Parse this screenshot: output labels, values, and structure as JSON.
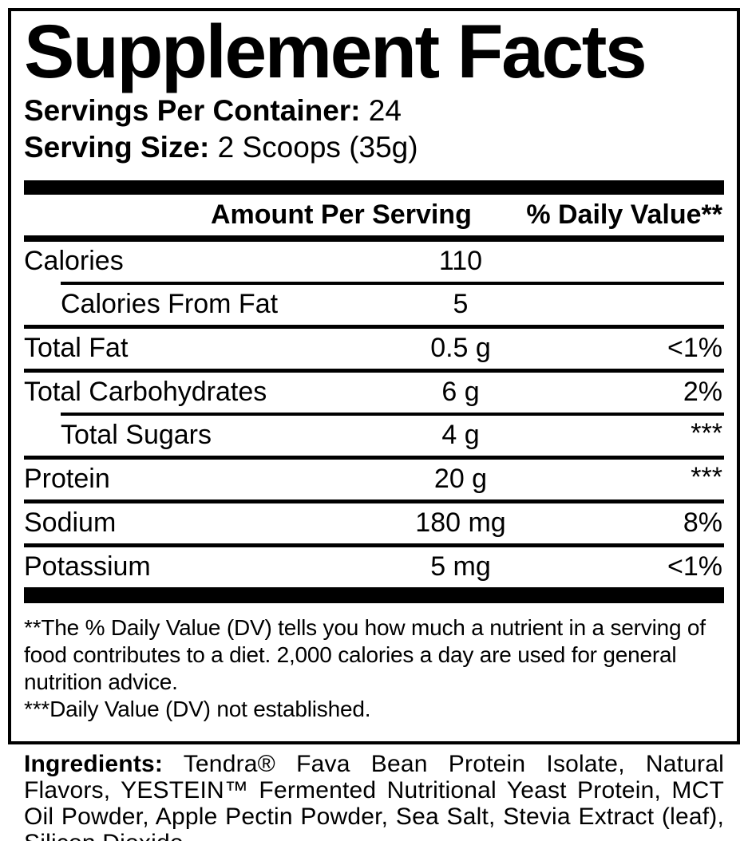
{
  "label": {
    "title": "Supplement Facts",
    "servings_per_container": {
      "label": "Servings Per Container:",
      "value": "24"
    },
    "serving_size": {
      "label": "Serving Size:",
      "value": "2 Scoops (35g)"
    },
    "columns": {
      "amount": "Amount Per Serving",
      "dv": "% Daily Value**"
    },
    "rows": [
      {
        "name": "Calories",
        "amount": "110",
        "dv": ""
      },
      {
        "name": "Calories From Fat",
        "amount": "5",
        "dv": ""
      },
      {
        "name": "Total Fat",
        "amount": "0.5 g",
        "dv": "<1%"
      },
      {
        "name": "Total Carbohydrates",
        "amount": "6 g",
        "dv": "2%"
      },
      {
        "name": "Total Sugars",
        "amount": "4 g",
        "dv": "***"
      },
      {
        "name": "Protein",
        "amount": "20 g",
        "dv": "***"
      },
      {
        "name": "Sodium",
        "amount": "180 mg",
        "dv": "8%"
      },
      {
        "name": "Potassium",
        "amount": "5 mg",
        "dv": "<1%"
      }
    ],
    "footnotes": {
      "daily_value": "**The % Daily Value (DV) tells you how much a nutrient in a serving of food contributes to a diet. 2,000 calories a day are used for general nutrition advice.",
      "not_established": "***Daily Value (DV) not established."
    }
  },
  "ingredients": {
    "label": "Ingredients:",
    "text": "Tendra® Fava Bean Protein Isolate, Natural Flavors, YESTEIN™ Fermented Nutritional Yeast Protein, MCT Oil Powder, Apple Pectin Powder, Sea Salt, Stevia Extract (leaf), Silicon Dioxide."
  },
  "colors": {
    "ink": "#000000",
    "background": "#ffffff"
  }
}
